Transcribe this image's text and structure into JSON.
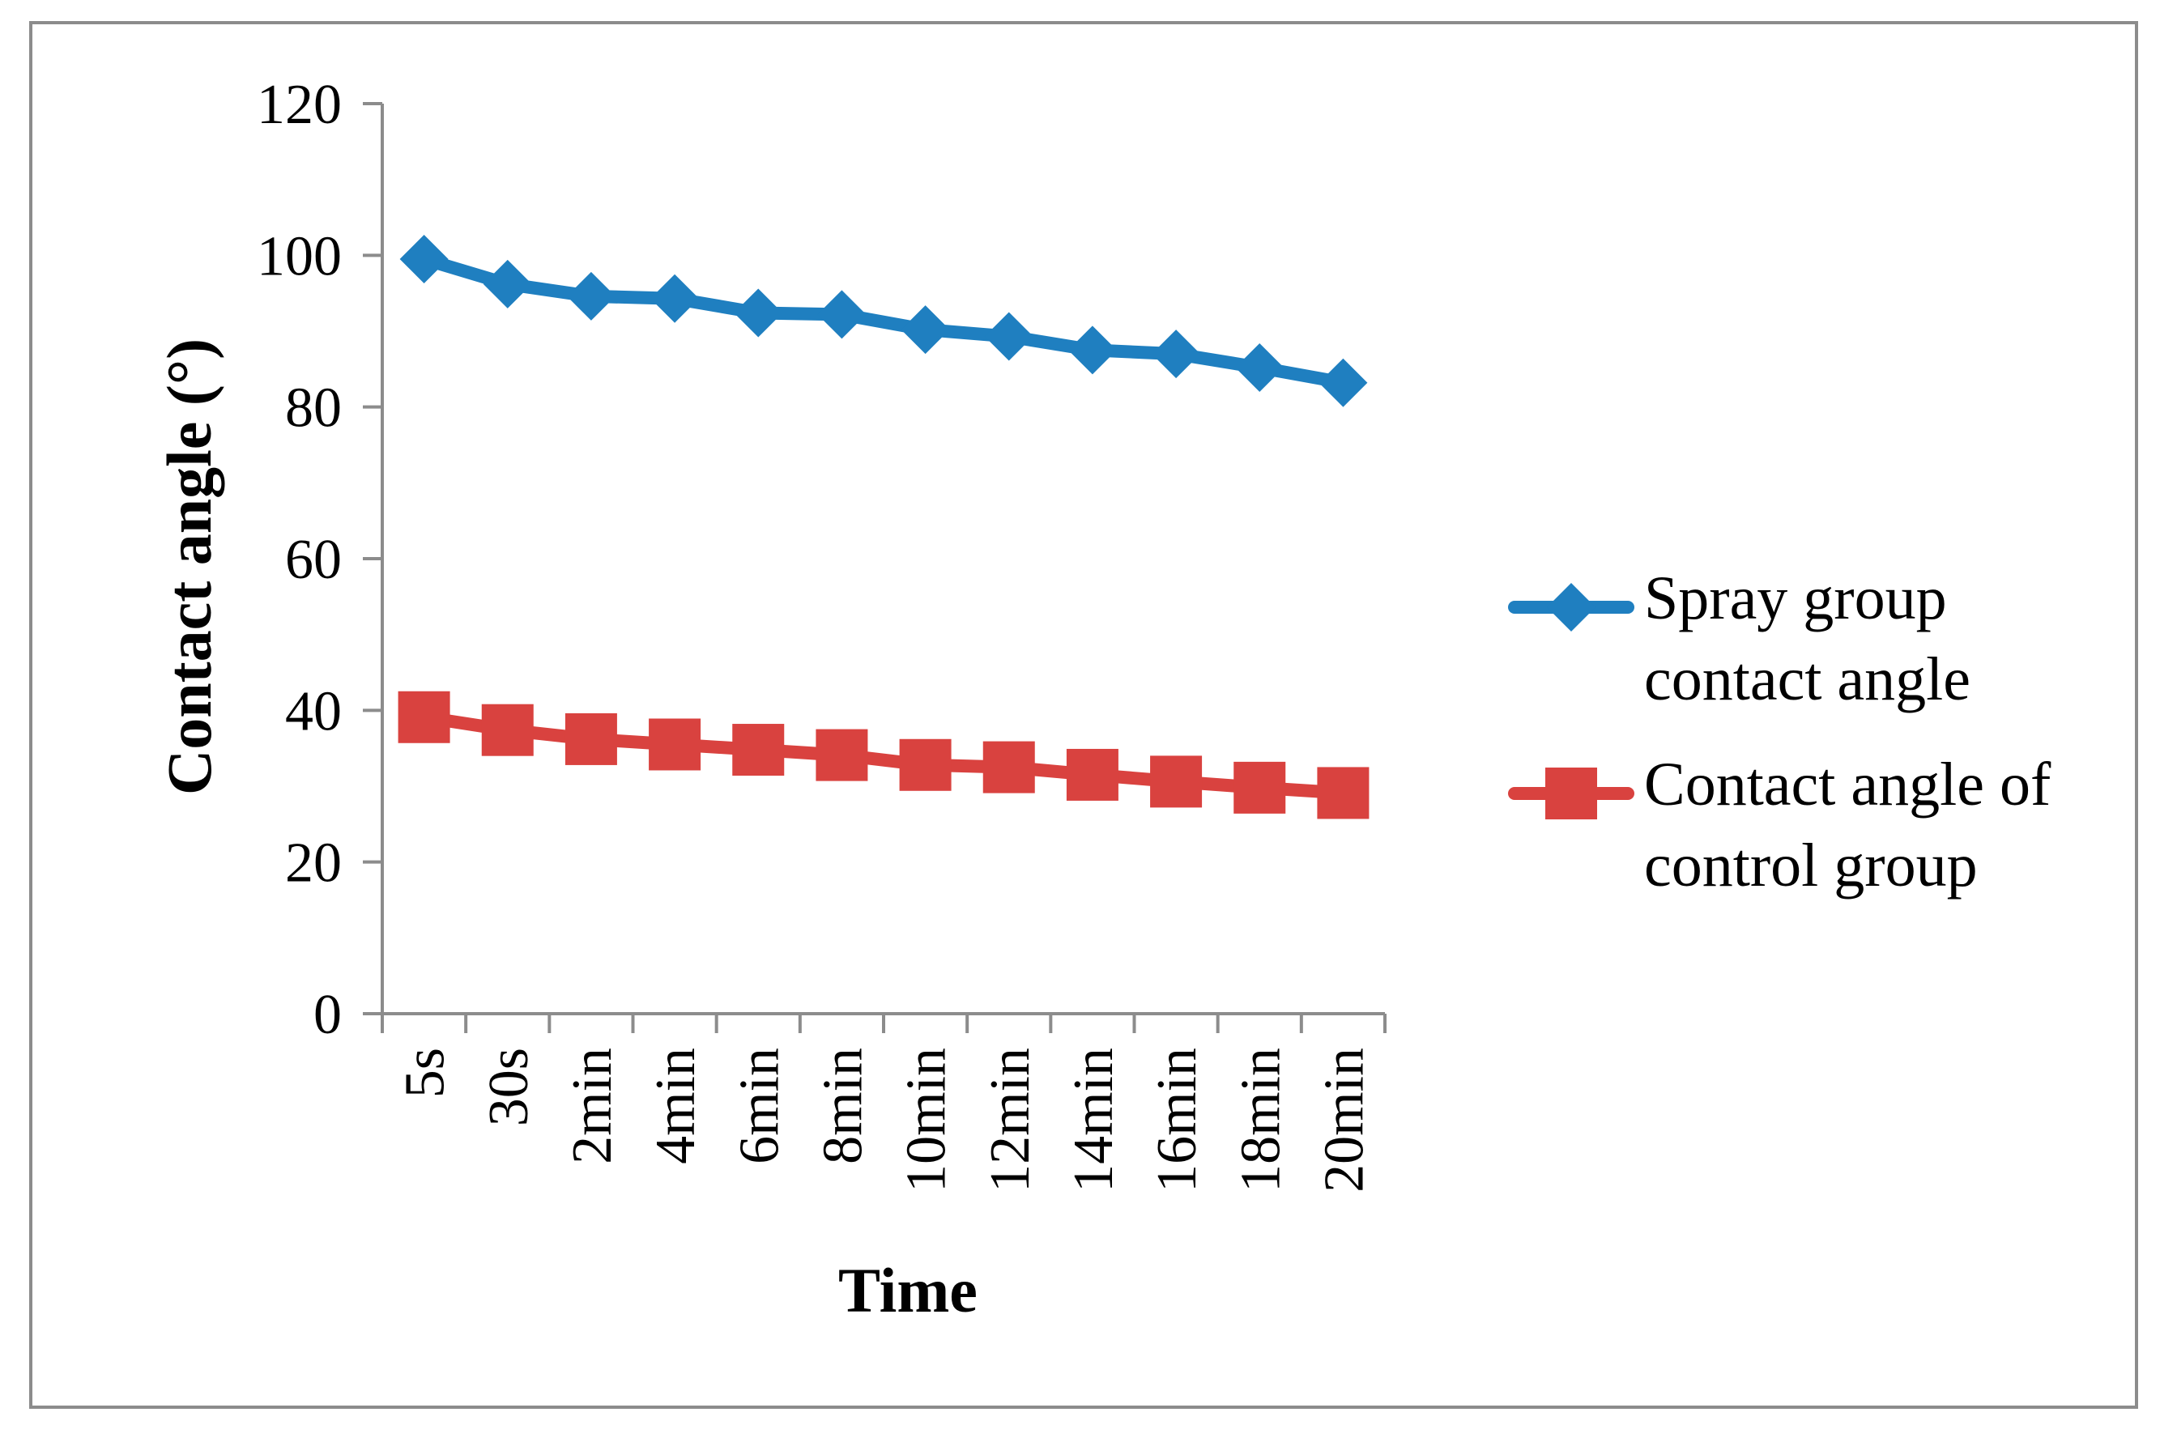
{
  "chart_data": {
    "type": "line",
    "title": "",
    "xlabel": "Time",
    "ylabel": "Contact angle (°)",
    "categories": [
      "5s",
      "30s",
      "2min",
      "4min",
      "6min",
      "8min",
      "10min",
      "12min",
      "14min",
      "16min",
      "18min",
      "20min"
    ],
    "ylim": [
      0,
      120
    ],
    "yticks": [
      "0",
      "20",
      "40",
      "60",
      "80",
      "100",
      "120"
    ],
    "grid": false,
    "legend_position": "right",
    "series": [
      {
        "name": "Spray group contact angle",
        "legend_lines": [
          "Spray group",
          "contact angle"
        ],
        "marker": "diamond",
        "color": "#1f7fc0",
        "values": [
          99.5,
          96.2,
          94.6,
          94.3,
          92.4,
          92.2,
          90.2,
          89.3,
          87.5,
          87.0,
          85.2,
          83.2
        ]
      },
      {
        "name": "Contact angle of control group",
        "legend_lines": [
          "Contact angle of",
          "control group"
        ],
        "marker": "square",
        "color": "#d9423f",
        "values": [
          39.1,
          37.4,
          36.2,
          35.5,
          34.8,
          34.1,
          32.8,
          32.5,
          31.5,
          30.6,
          29.8,
          29.1
        ]
      }
    ]
  }
}
